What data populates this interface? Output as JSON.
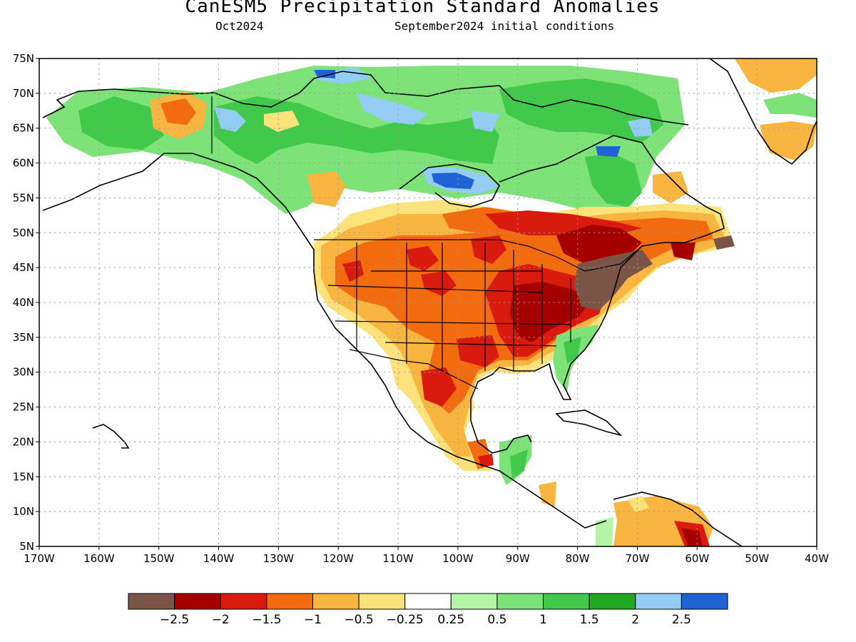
{
  "title": "CanESM5 Precipitation Standard Anomalies",
  "valid_month": "Oct2024",
  "init_text": "September2024 initial conditions",
  "lat_labels": [
    "75N",
    "70N",
    "65N",
    "60N",
    "55N",
    "50N",
    "45N",
    "40N",
    "35N",
    "30N",
    "25N",
    "20N",
    "15N",
    "10N",
    "5N"
  ],
  "lon_labels": [
    "170W",
    "160W",
    "150W",
    "140W",
    "130W",
    "120W",
    "110W",
    "100W",
    "90W",
    "80W",
    "70W",
    "60W",
    "50W",
    "40W"
  ],
  "colorbar": {
    "colors": [
      "#7a5547",
      "#a50000",
      "#d91a0f",
      "#f26b0f",
      "#f8b540",
      "#fbe27a",
      "#ffffff",
      "#b4f5a8",
      "#7de277",
      "#40c94b",
      "#21a821",
      "#94cdf3",
      "#1f63d4"
    ],
    "labels": [
      "-2.5",
      "-2",
      "-1.5",
      "-1",
      "-0.5",
      "-0.25",
      "0.25",
      "0.5",
      "1",
      "1.5",
      "2",
      "2.5"
    ]
  },
  "colors": {
    "dry_brown": "#7a5547",
    "dry_darkred": "#a50000",
    "dry_red": "#d91a0f",
    "dry_orange": "#f26b0f",
    "dry_lightorange": "#f8b540",
    "dry_yellow": "#fbe27a",
    "wet_lightgreen": "#b4f5a8",
    "wet_green1": "#7de277",
    "wet_green2": "#40c94b",
    "wet_green3": "#21a821",
    "wet_lightblue": "#94cdf3",
    "wet_blue": "#1f63d4"
  }
}
